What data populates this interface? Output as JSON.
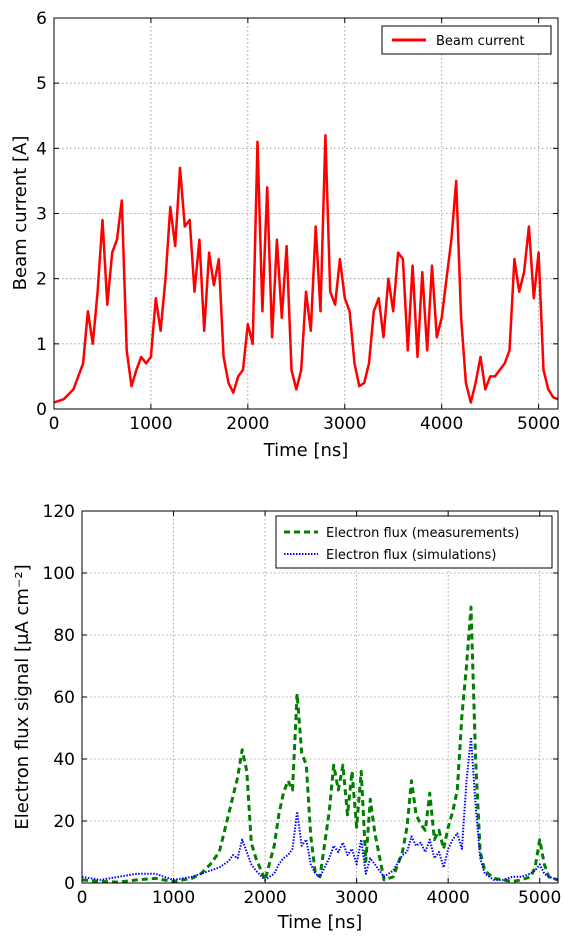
{
  "chart_data": [
    {
      "type": "line",
      "title": "",
      "xlabel": "Time [ns]",
      "ylabel": "Beam current [A]",
      "xlim": [
        0,
        5200
      ],
      "ylim": [
        0,
        6
      ],
      "xticks": [
        0,
        1000,
        2000,
        3000,
        4000,
        5000
      ],
      "yticks": [
        0,
        1,
        2,
        3,
        4,
        5,
        6
      ],
      "grid": true,
      "legend_position": "top-right",
      "series": [
        {
          "name": "Beam current",
          "color": "#ff0000",
          "style": "solid",
          "x": [
            0,
            100,
            200,
            300,
            350,
            400,
            450,
            500,
            550,
            600,
            650,
            700,
            750,
            800,
            850,
            900,
            950,
            1000,
            1050,
            1100,
            1150,
            1200,
            1250,
            1300,
            1350,
            1400,
            1450,
            1500,
            1550,
            1600,
            1650,
            1700,
            1750,
            1800,
            1850,
            1900,
            1950,
            2000,
            2050,
            2100,
            2150,
            2200,
            2250,
            2300,
            2350,
            2400,
            2450,
            2500,
            2550,
            2600,
            2650,
            2700,
            2750,
            2800,
            2850,
            2900,
            2950,
            3000,
            3050,
            3100,
            3150,
            3200,
            3250,
            3300,
            3350,
            3400,
            3450,
            3500,
            3550,
            3600,
            3650,
            3700,
            3750,
            3800,
            3850,
            3900,
            3950,
            4000,
            4050,
            4100,
            4150,
            4200,
            4250,
            4300,
            4350,
            4400,
            4450,
            4500,
            4550,
            4600,
            4650,
            4700,
            4750,
            4800,
            4850,
            4900,
            4950,
            5000,
            5050,
            5100,
            5150,
            5200
          ],
          "values": [
            0.1,
            0.15,
            0.3,
            0.7,
            1.5,
            1.0,
            1.8,
            2.9,
            1.6,
            2.4,
            2.6,
            3.2,
            0.9,
            0.35,
            0.6,
            0.8,
            0.7,
            0.8,
            1.7,
            1.2,
            2.0,
            3.1,
            2.5,
            3.7,
            2.8,
            2.9,
            1.8,
            2.6,
            1.2,
            2.4,
            1.9,
            2.3,
            0.8,
            0.4,
            0.25,
            0.5,
            0.6,
            1.3,
            1.0,
            4.1,
            1.5,
            3.4,
            1.1,
            2.6,
            1.4,
            2.5,
            0.6,
            0.3,
            0.6,
            1.8,
            1.2,
            2.8,
            1.5,
            4.2,
            1.8,
            1.6,
            2.3,
            1.7,
            1.5,
            0.7,
            0.35,
            0.4,
            0.7,
            1.5,
            1.7,
            1.1,
            2.0,
            1.5,
            2.4,
            2.3,
            0.9,
            2.2,
            0.8,
            2.1,
            0.9,
            2.2,
            1.1,
            1.4,
            2.0,
            2.6,
            3.5,
            1.4,
            0.4,
            0.1,
            0.4,
            0.8,
            0.3,
            0.5,
            0.5,
            0.6,
            0.7,
            0.9,
            2.3,
            1.8,
            2.1,
            2.8,
            1.7,
            2.4,
            0.6,
            0.3,
            0.18,
            0.15
          ]
        }
      ]
    },
    {
      "type": "line",
      "title": "",
      "xlabel": "Time [ns]",
      "ylabel": "Electron flux signal [μA cm⁻²]",
      "xlim": [
        0,
        5200
      ],
      "ylim": [
        0,
        120
      ],
      "xticks": [
        0,
        1000,
        2000,
        3000,
        4000,
        5000
      ],
      "yticks": [
        0,
        20,
        40,
        60,
        80,
        100,
        120
      ],
      "grid": true,
      "legend_position": "top-right",
      "series": [
        {
          "name": "Electron flux (measurements)",
          "color": "#007f00",
          "style": "dashed",
          "x": [
            0,
            200,
            400,
            600,
            800,
            1000,
            1200,
            1300,
            1400,
            1500,
            1600,
            1650,
            1700,
            1750,
            1800,
            1850,
            1900,
            2000,
            2100,
            2150,
            2200,
            2250,
            2300,
            2350,
            2400,
            2450,
            2500,
            2550,
            2600,
            2700,
            2750,
            2800,
            2850,
            2900,
            2950,
            3000,
            3050,
            3100,
            3150,
            3200,
            3300,
            3400,
            3500,
            3550,
            3600,
            3650,
            3700,
            3750,
            3800,
            3850,
            3900,
            3950,
            4000,
            4050,
            4100,
            4150,
            4200,
            4250,
            4300,
            4350,
            4400,
            4500,
            4600,
            4700,
            4800,
            4900,
            4950,
            5000,
            5050,
            5100,
            5200
          ],
          "values": [
            1,
            0.5,
            0.3,
            1.0,
            1.5,
            0.5,
            1.5,
            3.0,
            6.0,
            10.0,
            22.0,
            28.0,
            34.0,
            43.0,
            36.0,
            13.0,
            8.0,
            1.0,
            12.0,
            22.0,
            29.0,
            33.0,
            30.0,
            61.0,
            42.0,
            38.0,
            15.0,
            3.0,
            2.0,
            23.0,
            38.0,
            30.0,
            38.0,
            22.0,
            36.0,
            18.0,
            36.0,
            7.0,
            27.0,
            16.0,
            1.0,
            2.0,
            10.0,
            18.0,
            33.0,
            22.0,
            19.0,
            17.0,
            29.0,
            14.0,
            17.0,
            11.0,
            18.0,
            23.0,
            30.0,
            54.0,
            70.0,
            89.0,
            40.0,
            10.0,
            4.0,
            1.5,
            1.0,
            0.5,
            1.0,
            2.0,
            5.0,
            14.0,
            6.0,
            2.0,
            1.0
          ]
        },
        {
          "name": "Electron flux (simulations)",
          "color": "#0000ff",
          "style": "dotted",
          "x": [
            0,
            200,
            400,
            600,
            800,
            1000,
            1200,
            1300,
            1400,
            1500,
            1600,
            1650,
            1700,
            1750,
            1800,
            1850,
            1900,
            2000,
            2100,
            2150,
            2200,
            2250,
            2300,
            2350,
            2400,
            2450,
            2500,
            2550,
            2600,
            2700,
            2750,
            2800,
            2850,
            2900,
            2950,
            3000,
            3050,
            3100,
            3150,
            3200,
            3300,
            3400,
            3500,
            3550,
            3600,
            3650,
            3700,
            3750,
            3800,
            3850,
            3900,
            3950,
            4000,
            4050,
            4100,
            4150,
            4200,
            4250,
            4300,
            4350,
            4400,
            4500,
            4600,
            4700,
            4800,
            4900,
            4950,
            5000,
            5050,
            5100,
            5200
          ],
          "values": [
            2,
            1,
            2,
            3,
            3,
            1,
            2,
            3,
            4,
            5,
            7,
            9,
            8,
            14,
            10,
            6,
            4,
            1,
            3,
            6,
            8,
            9,
            11,
            23,
            12,
            14,
            6,
            3,
            2,
            8,
            12,
            10,
            13,
            9,
            11,
            6,
            14,
            3,
            8,
            6,
            2,
            4,
            9,
            10,
            15,
            12,
            13,
            10,
            14,
            8,
            10,
            5,
            11,
            14,
            16,
            11,
            33,
            47,
            25,
            8,
            3,
            1,
            1,
            2,
            2,
            3,
            4,
            6,
            3,
            2,
            1
          ]
        }
      ]
    }
  ]
}
